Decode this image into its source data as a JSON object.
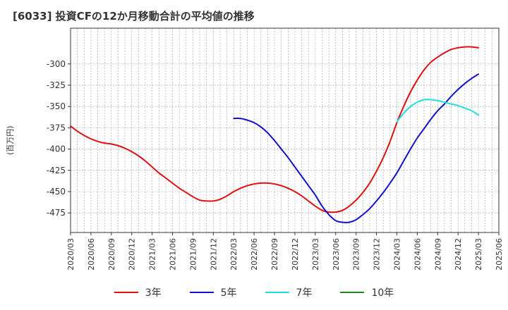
{
  "title": "[6033]  投資CFの12か月移動合計の平均値の推移",
  "chart_data": {
    "type": "line",
    "ylabel": "(百万円)",
    "xlabel": "",
    "ylim": [
      -498,
      -258
    ],
    "yticks": [
      -300,
      -325,
      -350,
      -375,
      -400,
      -425,
      -450,
      -475
    ],
    "xlim": [
      "2020/03",
      "2025/06"
    ],
    "xticks": [
      "2020/03",
      "2020/06",
      "2020/09",
      "2020/12",
      "2021/03",
      "2021/06",
      "2021/09",
      "2021/12",
      "2022/03",
      "2022/06",
      "2022/09",
      "2022/12",
      "2023/03",
      "2023/06",
      "2023/09",
      "2023/12",
      "2024/03",
      "2024/06",
      "2024/09",
      "2024/12",
      "2025/03",
      "2025/06"
    ],
    "grid": true,
    "legend_position": "bottom",
    "series": [
      {
        "name": "3年",
        "color": "#dd1111",
        "x": [
          "2020/03",
          "2020/04",
          "2020/05",
          "2020/06",
          "2020/07",
          "2020/08",
          "2020/09",
          "2020/10",
          "2020/11",
          "2020/12",
          "2021/01",
          "2021/02",
          "2021/03",
          "2021/04",
          "2021/05",
          "2021/06",
          "2021/07",
          "2021/08",
          "2021/09",
          "2021/10",
          "2021/11",
          "2021/12",
          "2022/01",
          "2022/02",
          "2022/03",
          "2022/04",
          "2022/05",
          "2022/06",
          "2022/07",
          "2022/08",
          "2022/09",
          "2022/10",
          "2022/11",
          "2022/12",
          "2023/01",
          "2023/02",
          "2023/03",
          "2023/04",
          "2023/05",
          "2023/06",
          "2023/07",
          "2023/08",
          "2023/09",
          "2023/10",
          "2023/11",
          "2023/12",
          "2024/01",
          "2024/02",
          "2024/03",
          "2024/04",
          "2024/05",
          "2024/06",
          "2024/07",
          "2024/08",
          "2024/09",
          "2024/10",
          "2024/11",
          "2024/12",
          "2025/01",
          "2025/02",
          "2025/03"
        ],
        "values": [
          -373,
          -379,
          -384,
          -388,
          -391,
          -393,
          -394,
          -396,
          -399,
          -403,
          -408,
          -414,
          -421,
          -428,
          -434,
          -440,
          -446,
          -451,
          -456,
          -460,
          -461,
          -461,
          -459,
          -455,
          -450,
          -446,
          -443,
          -441,
          -440,
          -440,
          -441,
          -443,
          -446,
          -450,
          -455,
          -461,
          -467,
          -472,
          -474,
          -474,
          -472,
          -467,
          -460,
          -451,
          -440,
          -426,
          -410,
          -391,
          -369,
          -350,
          -333,
          -319,
          -307,
          -298,
          -292,
          -287,
          -283,
          -281,
          -280,
          -280,
          -281
        ]
      },
      {
        "name": "5年",
        "color": "#1111cc",
        "x": [
          "2022/03",
          "2022/04",
          "2022/05",
          "2022/06",
          "2022/07",
          "2022/08",
          "2022/09",
          "2022/10",
          "2022/11",
          "2022/12",
          "2023/01",
          "2023/02",
          "2023/03",
          "2023/04",
          "2023/05",
          "2023/06",
          "2023/07",
          "2023/08",
          "2023/09",
          "2023/10",
          "2023/11",
          "2023/12",
          "2024/01",
          "2024/02",
          "2024/03",
          "2024/04",
          "2024/05",
          "2024/06",
          "2024/07",
          "2024/08",
          "2024/09",
          "2024/10",
          "2024/11",
          "2024/12",
          "2025/01",
          "2025/02",
          "2025/03"
        ],
        "values": [
          -364,
          -364,
          -366,
          -369,
          -374,
          -381,
          -390,
          -400,
          -410,
          -421,
          -432,
          -443,
          -454,
          -467,
          -477,
          -484,
          -486,
          -486,
          -483,
          -477,
          -470,
          -461,
          -451,
          -440,
          -428,
          -414,
          -400,
          -387,
          -376,
          -365,
          -355,
          -347,
          -338,
          -330,
          -323,
          -317,
          -312
        ]
      },
      {
        "name": "7年",
        "color": "#22dddd",
        "x": [
          "2024/03",
          "2024/04",
          "2024/05",
          "2024/06",
          "2024/07",
          "2024/08",
          "2024/09",
          "2024/10",
          "2024/11",
          "2024/12",
          "2025/01",
          "2025/02",
          "2025/03"
        ],
        "values": [
          -368,
          -358,
          -350,
          -345,
          -342,
          -342,
          -343,
          -345,
          -347,
          -349,
          -352,
          -355,
          -360
        ]
      },
      {
        "name": "10年",
        "color": "#228822",
        "x": [],
        "values": []
      }
    ]
  }
}
